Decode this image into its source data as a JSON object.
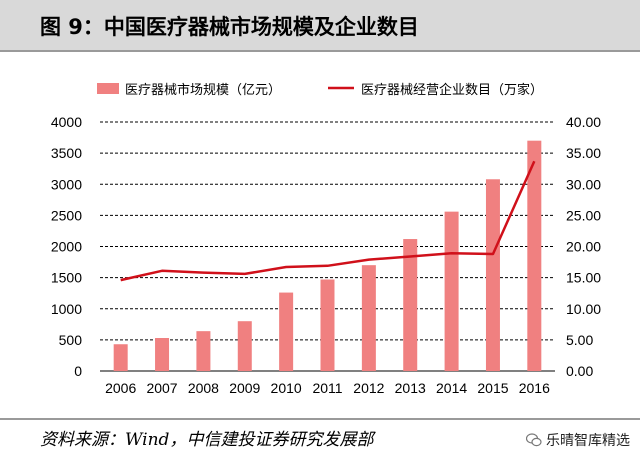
{
  "page": {
    "title": "图 9：中国医疗器械市场规模及企业数目"
  },
  "source": "资料来源：Wind，中信建投证券研究发展部",
  "watermark": "乐晴智库精选",
  "colors": {
    "bar": "#f08080",
    "line": "#d0101a",
    "title_band": "#d9d9d9"
  },
  "chart_data": {
    "type": "bar+line",
    "categories": [
      "2006",
      "2007",
      "2008",
      "2009",
      "2010",
      "2011",
      "2012",
      "2013",
      "2014",
      "2015",
      "2016"
    ],
    "series": [
      {
        "name": "医疗器械市场规模（亿元）",
        "type": "bar",
        "axis": "left",
        "values": [
          430,
          530,
          640,
          800,
          1260,
          1470,
          1700,
          2120,
          2560,
          3080,
          3700
        ]
      },
      {
        "name": "医疗器械经营企业数目（万家）",
        "type": "line",
        "axis": "right",
        "values": [
          14.6,
          16.1,
          15.8,
          15.6,
          16.7,
          16.9,
          17.9,
          18.4,
          18.9,
          18.8,
          33.7
        ]
      }
    ],
    "y_left": {
      "min": 0,
      "max": 4000,
      "ticks": [
        "0",
        "500",
        "1000",
        "1500",
        "2000",
        "2500",
        "3000",
        "3500",
        "4000"
      ]
    },
    "y_right": {
      "min": 0,
      "max": 40,
      "ticks": [
        "0.00",
        "5.00",
        "10.00",
        "15.00",
        "20.00",
        "25.00",
        "30.00",
        "35.00",
        "40.00"
      ]
    },
    "grid": true,
    "legend": "top"
  }
}
